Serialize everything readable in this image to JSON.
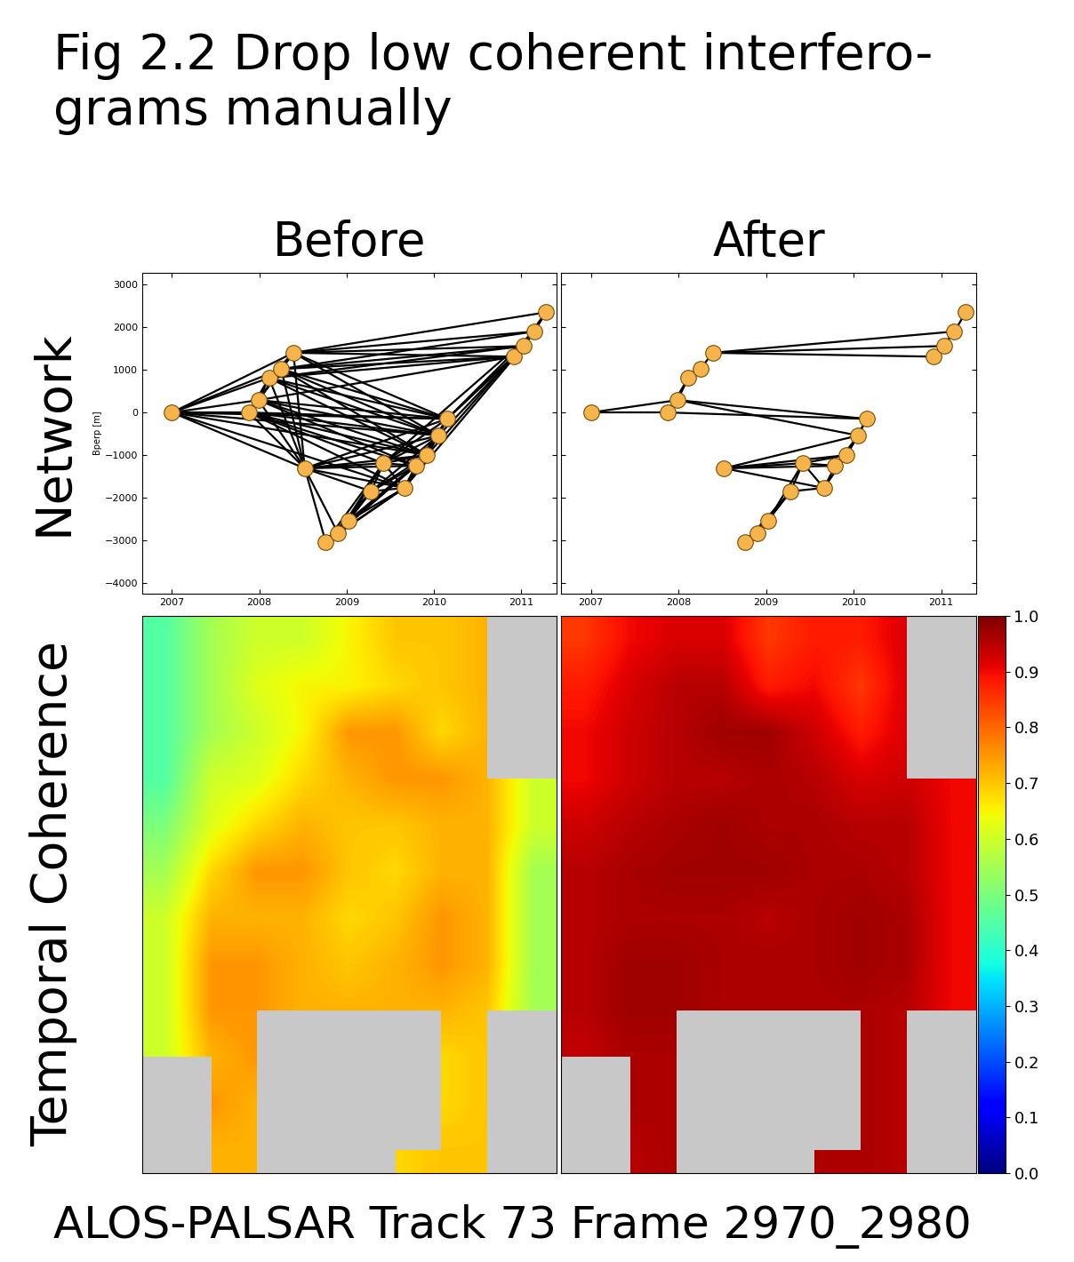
{
  "title": "Fig 2.2 Drop low coherent interfero-\ngrams manually",
  "caption": "ALOS-PALSAR Track 73 Frame 2970_2980",
  "row_labels": [
    "Network",
    "Temporal Coherence"
  ],
  "chart_data": [
    {
      "type": "network",
      "title": "Before",
      "y_label": "Bperp [m]",
      "color": "#f6b44c",
      "x": [
        2007.0,
        2007.88,
        2007.99,
        2008.11,
        2008.25,
        2008.39,
        2008.52,
        2008.76,
        2008.9,
        2009.02,
        2009.28,
        2009.42,
        2009.66,
        2009.79,
        2009.92,
        2010.05,
        2010.15,
        2010.91,
        2011.03,
        2011.15,
        2011.28
      ],
      "values": [
        0,
        0,
        290,
        810,
        1020,
        1400,
        -1310,
        -3040,
        -2830,
        -2540,
        -1850,
        -1190,
        -1770,
        -1250,
        -1000,
        -540,
        -150,
        1310,
        1560,
        1900,
        2350
      ],
      "edges": [
        [
          0,
          1
        ],
        [
          0,
          2
        ],
        [
          0,
          3
        ],
        [
          0,
          4
        ],
        [
          0,
          5
        ],
        [
          0,
          6
        ],
        [
          0,
          12
        ],
        [
          0,
          14
        ],
        [
          0,
          15
        ],
        [
          0,
          16
        ],
        [
          1,
          2
        ],
        [
          1,
          3
        ],
        [
          1,
          4
        ],
        [
          1,
          5
        ],
        [
          1,
          6
        ],
        [
          1,
          11
        ],
        [
          1,
          12
        ],
        [
          1,
          13
        ],
        [
          1,
          14
        ],
        [
          1,
          15
        ],
        [
          1,
          16
        ],
        [
          2,
          3
        ],
        [
          2,
          4
        ],
        [
          2,
          5
        ],
        [
          2,
          6
        ],
        [
          2,
          13
        ],
        [
          2,
          14
        ],
        [
          2,
          15
        ],
        [
          2,
          16
        ],
        [
          2,
          17
        ],
        [
          3,
          4
        ],
        [
          3,
          5
        ],
        [
          3,
          6
        ],
        [
          3,
          14
        ],
        [
          3,
          15
        ],
        [
          3,
          16
        ],
        [
          3,
          17
        ],
        [
          3,
          18
        ],
        [
          4,
          5
        ],
        [
          4,
          6
        ],
        [
          4,
          14
        ],
        [
          4,
          15
        ],
        [
          4,
          16
        ],
        [
          4,
          17
        ],
        [
          4,
          18
        ],
        [
          4,
          19
        ],
        [
          5,
          6
        ],
        [
          5,
          15
        ],
        [
          5,
          16
        ],
        [
          5,
          17
        ],
        [
          5,
          18
        ],
        [
          5,
          19
        ],
        [
          5,
          20
        ],
        [
          6,
          7
        ],
        [
          6,
          8
        ],
        [
          6,
          10
        ],
        [
          6,
          11
        ],
        [
          6,
          12
        ],
        [
          6,
          13
        ],
        [
          6,
          14
        ],
        [
          6,
          15
        ],
        [
          6,
          16
        ],
        [
          7,
          8
        ],
        [
          7,
          9
        ],
        [
          7,
          10
        ],
        [
          7,
          11
        ],
        [
          7,
          12
        ],
        [
          7,
          13
        ],
        [
          8,
          9
        ],
        [
          8,
          10
        ],
        [
          8,
          11
        ],
        [
          8,
          12
        ],
        [
          8,
          13
        ],
        [
          9,
          10
        ],
        [
          9,
          11
        ],
        [
          9,
          12
        ],
        [
          9,
          13
        ],
        [
          9,
          14
        ],
        [
          10,
          11
        ],
        [
          10,
          12
        ],
        [
          10,
          13
        ],
        [
          10,
          14
        ],
        [
          10,
          15
        ],
        [
          11,
          12
        ],
        [
          11,
          13
        ],
        [
          11,
          14
        ],
        [
          11,
          15
        ],
        [
          11,
          16
        ],
        [
          11,
          19
        ],
        [
          12,
          13
        ],
        [
          12,
          14
        ],
        [
          12,
          15
        ],
        [
          12,
          16
        ],
        [
          12,
          18
        ],
        [
          13,
          14
        ],
        [
          13,
          15
        ],
        [
          13,
          16
        ],
        [
          14,
          15
        ],
        [
          14,
          16
        ],
        [
          14,
          17
        ],
        [
          15,
          16
        ],
        [
          15,
          18
        ],
        [
          16,
          17
        ],
        [
          16,
          18
        ],
        [
          16,
          19
        ],
        [
          17,
          18
        ],
        [
          17,
          19
        ],
        [
          17,
          20
        ],
        [
          18,
          19
        ],
        [
          18,
          20
        ],
        [
          19,
          20
        ]
      ],
      "xlim": [
        2006.66,
        2011.4
      ],
      "xticks": [
        2007,
        2008,
        2009,
        2010,
        2011
      ],
      "ylim": [
        -4250,
        3270
      ],
      "yticks": [
        {
          "value": -4000,
          "label": "−4000"
        },
        {
          "value": -3000,
          "label": "−3000"
        },
        {
          "value": -2000,
          "label": "−2000"
        },
        {
          "value": -1000,
          "label": "−1000"
        },
        0,
        1000,
        2000,
        3000
      ]
    },
    {
      "type": "network",
      "title": "After",
      "color": "#f6b44c",
      "tick_labels": "x",
      "x": [
        2007.0,
        2007.88,
        2007.99,
        2008.11,
        2008.25,
        2008.39,
        2008.52,
        2008.76,
        2008.9,
        2009.02,
        2009.28,
        2009.42,
        2009.66,
        2009.79,
        2009.92,
        2010.05,
        2010.15,
        2010.91,
        2011.03,
        2011.15,
        2011.28
      ],
      "values": [
        0,
        0,
        290,
        810,
        1020,
        1400,
        -1310,
        -3040,
        -2830,
        -2540,
        -1850,
        -1190,
        -1770,
        -1250,
        -1000,
        -540,
        -150,
        1310,
        1560,
        1900,
        2350
      ],
      "edges": [
        [
          0,
          1
        ],
        [
          0,
          2
        ],
        [
          1,
          2
        ],
        [
          1,
          3
        ],
        [
          2,
          3
        ],
        [
          3,
          4
        ],
        [
          4,
          5
        ],
        [
          2,
          16
        ],
        [
          1,
          16
        ],
        [
          2,
          15
        ],
        [
          5,
          17
        ],
        [
          5,
          18
        ],
        [
          5,
          19
        ],
        [
          17,
          18
        ],
        [
          18,
          19
        ],
        [
          19,
          20
        ],
        [
          17,
          19
        ],
        [
          16,
          15
        ],
        [
          16,
          14
        ],
        [
          15,
          14
        ],
        [
          15,
          13
        ],
        [
          14,
          13
        ],
        [
          14,
          6
        ],
        [
          15,
          6
        ],
        [
          13,
          6
        ],
        [
          12,
          6
        ],
        [
          11,
          6
        ],
        [
          12,
          11
        ],
        [
          13,
          11
        ],
        [
          14,
          11
        ],
        [
          13,
          12
        ],
        [
          14,
          12
        ],
        [
          11,
          10
        ],
        [
          12,
          10
        ],
        [
          10,
          9
        ],
        [
          11,
          9
        ],
        [
          9,
          8
        ],
        [
          8,
          7
        ],
        [
          9,
          7
        ],
        [
          10,
          7
        ],
        [
          10,
          8
        ]
      ],
      "xlim": [
        2006.66,
        2011.4
      ],
      "xticks": [
        2007,
        2008,
        2009,
        2010,
        2011
      ],
      "ylim": [
        -4250,
        3270
      ],
      "yticks": [
        {
          "value": -4000,
          "label": "−4000"
        },
        {
          "value": -3000,
          "label": "−3000"
        },
        {
          "value": -2000,
          "label": "−2000"
        },
        {
          "value": -1000,
          "label": "−1000"
        },
        0,
        1000,
        2000,
        3000
      ]
    },
    {
      "type": "heatmap",
      "tick_labels": false,
      "cells": [
        [
          0.45,
          0.55,
          0.6,
          0.6,
          0.65,
          0.7,
          0.7,
          0.72,
          null
        ],
        [
          0.45,
          0.55,
          0.62,
          0.65,
          0.65,
          0.68,
          0.7,
          0.72,
          null
        ],
        [
          0.45,
          0.55,
          0.6,
          0.65,
          0.75,
          0.75,
          0.68,
          0.72,
          null
        ],
        [
          0.45,
          0.6,
          0.62,
          0.68,
          0.72,
          0.75,
          0.75,
          0.72,
          0.6
        ],
        [
          0.5,
          0.62,
          0.68,
          0.72,
          0.7,
          0.7,
          0.72,
          0.72,
          0.6
        ],
        [
          0.55,
          0.68,
          0.75,
          0.75,
          0.7,
          0.68,
          0.72,
          0.72,
          0.55
        ],
        [
          0.6,
          0.72,
          0.72,
          0.72,
          0.68,
          0.7,
          0.75,
          0.72,
          0.55
        ],
        [
          0.6,
          0.75,
          0.75,
          0.72,
          0.7,
          0.72,
          0.75,
          0.72,
          0.55
        ],
        [
          0.6,
          0.75,
          0.75,
          0.72,
          0.72,
          0.72,
          0.72,
          0.7,
          0.55
        ],
        [
          0.6,
          0.72,
          0.75,
          null,
          0.72,
          null,
          0.68,
          0.7,
          null
        ],
        [
          null,
          0.75,
          0.72,
          null,
          null,
          null,
          0.68,
          0.7,
          null
        ],
        [
          null,
          0.72,
          0.72,
          null,
          null,
          0.68,
          0.7,
          0.7,
          null
        ]
      ]
    },
    {
      "type": "heatmap",
      "tick_labels": false,
      "cells": [
        [
          0.85,
          0.9,
          0.92,
          0.92,
          0.85,
          0.88,
          0.88,
          0.92,
          null
        ],
        [
          0.88,
          0.92,
          0.95,
          0.95,
          0.88,
          0.9,
          0.85,
          0.92,
          null
        ],
        [
          0.9,
          0.93,
          0.95,
          0.97,
          0.97,
          0.93,
          0.88,
          0.92,
          null
        ],
        [
          0.9,
          0.93,
          0.95,
          0.95,
          0.96,
          0.95,
          0.92,
          0.93,
          0.9
        ],
        [
          0.93,
          0.95,
          0.96,
          0.97,
          0.96,
          0.96,
          0.95,
          0.95,
          0.9
        ],
        [
          0.95,
          0.96,
          0.97,
          0.97,
          0.97,
          0.96,
          0.96,
          0.95,
          0.9
        ],
        [
          0.95,
          0.96,
          0.96,
          0.96,
          0.95,
          0.96,
          0.97,
          0.96,
          0.9
        ],
        [
          0.95,
          0.97,
          0.97,
          0.96,
          0.96,
          0.96,
          0.97,
          0.96,
          0.9
        ],
        [
          0.95,
          0.97,
          0.97,
          0.96,
          0.96,
          0.96,
          0.96,
          0.95,
          0.9
        ],
        [
          0.94,
          0.96,
          0.96,
          null,
          0.96,
          null,
          0.96,
          0.95,
          null
        ],
        [
          null,
          0.96,
          0.96,
          null,
          null,
          null,
          0.96,
          0.95,
          null
        ],
        [
          null,
          0.95,
          0.96,
          null,
          null,
          0.96,
          0.96,
          0.95,
          null
        ]
      ],
      "colorbar": {
        "range": [
          0.0,
          1.0
        ],
        "ticks": [
          0.0,
          0.1,
          0.2,
          0.3,
          0.4,
          0.5,
          0.6,
          0.7,
          0.8,
          0.9,
          1.0
        ]
      }
    }
  ]
}
